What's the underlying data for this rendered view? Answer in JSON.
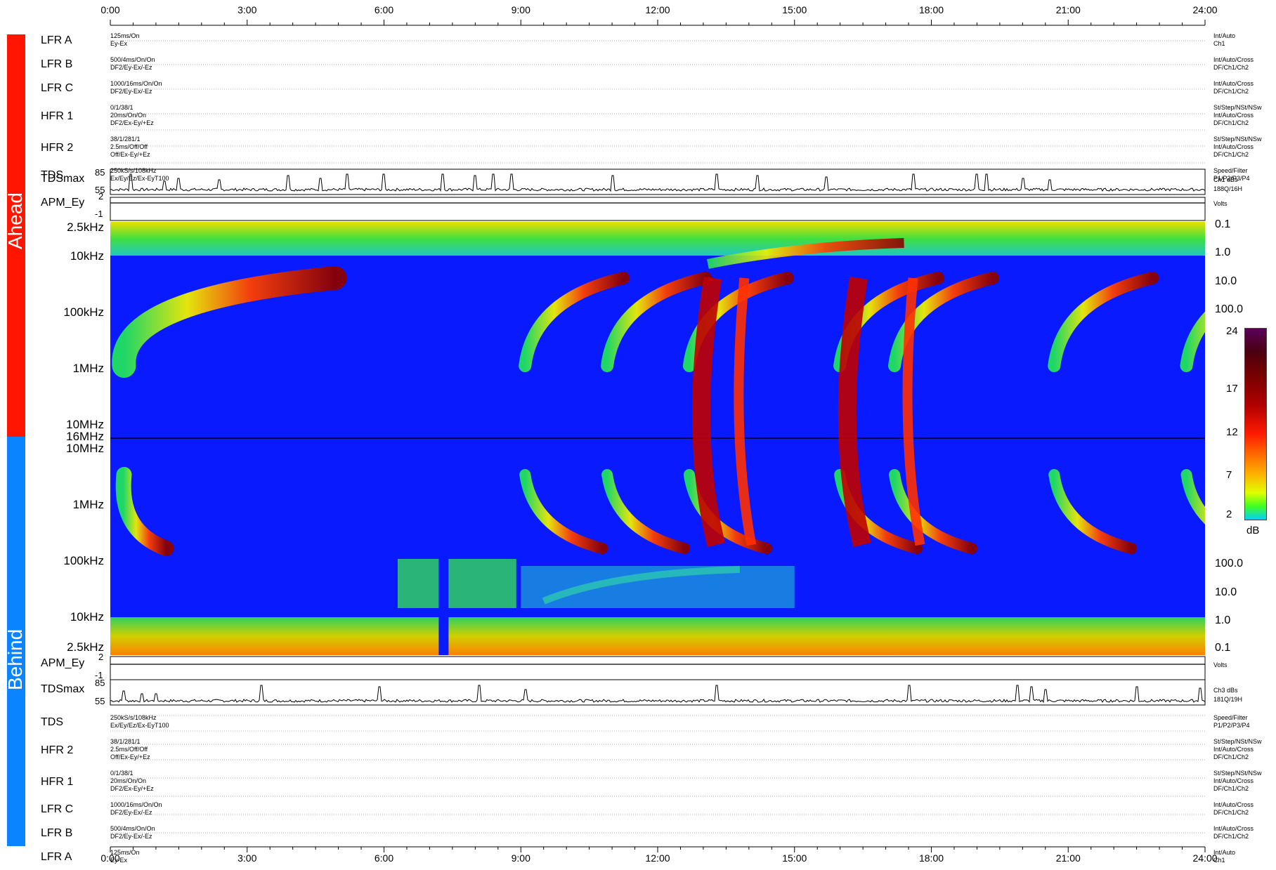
{
  "colors": {
    "ahead_bar": "#FF1500",
    "behind_bar": "#0A84FF",
    "background": "#0A1AFF"
  },
  "time_axis": {
    "ticks": [
      "0:00",
      "3:00",
      "6:00",
      "9:00",
      "12:00",
      "15:00",
      "18:00",
      "21:00",
      "24:00"
    ]
  },
  "sidebar": {
    "ahead_label": "Ahead",
    "behind_label": "Behind"
  },
  "ahead_rows": [
    {
      "label": "LFR A",
      "left": [
        "125ms/On",
        "Ey-Ex"
      ],
      "right": [
        "Int/Auto",
        "Ch1"
      ]
    },
    {
      "label": "LFR B",
      "left": [
        "500/4ms/On/On",
        "DF2/Ey-Ex/-Ez"
      ],
      "right": [
        "Int/Auto/Cross",
        "DF/Ch1/Ch2"
      ]
    },
    {
      "label": "LFR C",
      "left": [
        "1000/16ms/On/On",
        "DF2/Ey-Ex/-Ez"
      ],
      "right": [
        "Int/Auto/Cross",
        "DF/Ch1/Ch2"
      ]
    },
    {
      "label": "HFR 1",
      "left": [
        "0/1/38/1",
        "20ms/On/On",
        "DF2/Ex-Ey/+Ez"
      ],
      "right": [
        "St/Step/NSt/NSw",
        "Int/Auto/Cross",
        "DF/Ch1/Ch2"
      ]
    },
    {
      "label": "HFR 2",
      "left": [
        "38/1/281/1",
        "2.5ms/Off/Off",
        "Off/Ex-Ey/+Ez"
      ],
      "right": [
        "St/Step/NSt/NSw",
        "Int/Auto/Cross",
        "DF/Ch1/Ch2"
      ]
    },
    {
      "label": "TDS",
      "left": [
        "250kS/s/108kHz",
        "Ex/Ey/Ez/Ex-EyT100"
      ],
      "right": [
        "Speed/Filter",
        "P1/P2/P3/P4"
      ]
    }
  ],
  "ahead_tdsmax": {
    "label": "TDSmax",
    "ymax": "85",
    "ymin": "55",
    "right": [
      "Ch1 dBs",
      "188Q/16H"
    ]
  },
  "ahead_apm": {
    "label": "APM_Ey",
    "ymax": "2",
    "ymin": "-1",
    "right": [
      "Volts"
    ]
  },
  "behind_apm": {
    "label": "APM_Ey",
    "ymax": "2",
    "ymin": "-1",
    "right": [
      "Volts"
    ]
  },
  "behind_tdsmax": {
    "label": "TDSmax",
    "ymax": "85",
    "ymin": "55",
    "right": [
      "Ch3 dBs",
      "181Q/19H"
    ]
  },
  "behind_rows": [
    {
      "label": "TDS",
      "left": [
        "250kS/s/108kHz",
        "Ex/Ey/Ez/Ex-EyT100"
      ],
      "right": [
        "Speed/Filter",
        "P1/P2/P3/P4"
      ]
    },
    {
      "label": "HFR 2",
      "left": [
        "38/1/281/1",
        "2.5ms/Off/Off",
        "Off/Ex-Ey/+Ez"
      ],
      "right": [
        "St/Step/NSt/NSw",
        "Int/Auto/Cross",
        "DF/Ch1/Ch2"
      ]
    },
    {
      "label": "HFR 1",
      "left": [
        "0/1/38/1",
        "20ms/On/On",
        "DF2/Ex-Ey/+Ez"
      ],
      "right": [
        "St/Step/NSt/NSw",
        "Int/Auto/Cross",
        "DF/Ch1/Ch2"
      ]
    },
    {
      "label": "LFR C",
      "left": [
        "1000/16ms/On/On",
        "DF2/Ey-Ex/-Ez"
      ],
      "right": [
        "Int/Auto/Cross",
        "DF/Ch1/Ch2"
      ]
    },
    {
      "label": "LFR B",
      "left": [
        "500/4ms/On/On",
        "DF2/Ey-Ex/-Ez"
      ],
      "right": [
        "Int/Auto/Cross",
        "DF/Ch1/Ch2"
      ]
    },
    {
      "label": "LFR A",
      "left": [
        "125ms/On",
        "Ey-Ex"
      ],
      "right": [
        "Int/Auto",
        "Ch1"
      ]
    }
  ],
  "ahead_freq_labels": [
    "2.5kHz",
    "10kHz",
    "100kHz",
    "1MHz",
    "10MHz"
  ],
  "behind_freq_labels": [
    "16MHz",
    "10MHz",
    "1MHz",
    "100kHz",
    "10kHz",
    "2.5kHz"
  ],
  "ahead_right_labels": [
    "0.1",
    "1.0",
    "10.0",
    "100.0"
  ],
  "behind_right_labels": [
    "100.0",
    "10.0",
    "1.0",
    "0.1"
  ],
  "colorbar": {
    "ticks": [
      "24",
      "17",
      "12",
      "7",
      "2"
    ],
    "unit": "dB"
  },
  "chart_data": {
    "type": "heatmap",
    "title": "",
    "xlabel": "",
    "ylabel": "",
    "x_range": [
      "0:00",
      "24:00"
    ],
    "color_range_db": [
      2,
      24
    ],
    "panels": [
      {
        "name": "Ahead",
        "y_labels": [
          "2.5kHz",
          "10kHz",
          "100kHz",
          "1MHz",
          "10MHz"
        ]
      },
      {
        "name": "Behind",
        "y_labels": [
          "16MHz",
          "10MHz",
          "1MHz",
          "100kHz",
          "10kHz",
          "2.5kHz"
        ]
      }
    ],
    "type_iii_bursts_hours": [
      0.3,
      9.4,
      11.2,
      13.0,
      16.3,
      17.5,
      21.0,
      23.9
    ]
  }
}
